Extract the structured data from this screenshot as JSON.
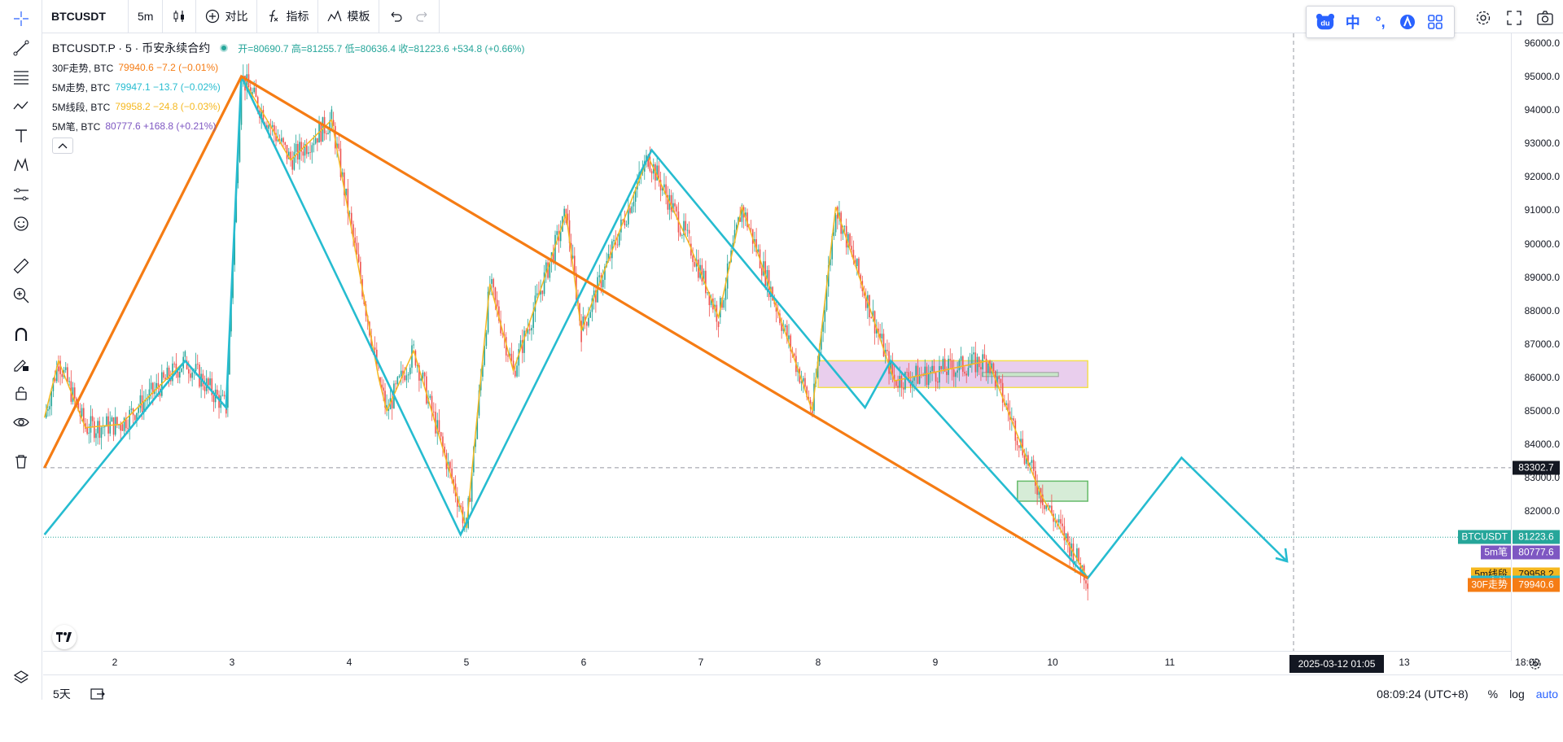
{
  "toolbar": {
    "symbol": "BTCUSDT",
    "interval": "5m",
    "compare_label": "对比",
    "indicators_label": "指标",
    "templates_label": "模板"
  },
  "brand_bar": {
    "du_text": "du",
    "lang_text": "中",
    "degree_text": "°,"
  },
  "legend": {
    "symbol_line": "BTCUSDT.P · 5 · 币安永续合约",
    "ohlc": "开=80690.7 高=81255.7 低=80636.4 收=81223.6 +534.8 (+0.66%)",
    "studies": [
      {
        "name": "30F走势, BTC",
        "value": "79940.6 −7.2 (−0.01%)",
        "color": "#f57c14"
      },
      {
        "name": "5M走势, BTC",
        "value": "79947.1 −13.7 (−0.02%)",
        "color": "#26bcd0"
      },
      {
        "name": "5M线段, BTC",
        "value": "79958.2 −24.8 (−0.03%)",
        "color": "#f5b820"
      },
      {
        "name": "5M笔, BTC",
        "value": "80777.6 +168.8 (+0.21%)",
        "color": "#7e57c2"
      }
    ]
  },
  "bottom": {
    "range_label": "5天",
    "clock": "08:09:24 (UTC+8)",
    "percent_label": "%",
    "log_label": "log",
    "auto_label": "auto"
  },
  "crosshair_date": "2025-03-12   01:05",
  "chart_data": {
    "type": "line",
    "title": "BTCUSDT.P · 5 · 币安永续合约",
    "ylim": [
      78200,
      96800
    ],
    "xlabel": "",
    "ylabel": "",
    "x_tick_labels": [
      "2",
      "3",
      "4",
      "5",
      "6",
      "7",
      "8",
      "9",
      "10",
      "11",
      "13",
      "18:00"
    ],
    "y_tick_labels": [
      "96000.0",
      "95000.0",
      "94000.0",
      "93000.0",
      "92000.0",
      "91000.0",
      "90000.0",
      "89000.0",
      "88000.0",
      "87000.0",
      "86000.0",
      "85000.0",
      "84000.0",
      "83000.0",
      "82000.0"
    ],
    "y_ticks": [
      96000,
      95000,
      94000,
      93000,
      92000,
      91000,
      90000,
      89000,
      88000,
      87000,
      86000,
      85000,
      84000,
      83000,
      82000
    ],
    "x_ticks": [
      2,
      3,
      4,
      5,
      6,
      7,
      8,
      9,
      10,
      11,
      13,
      14.05
    ],
    "xlim": [
      1.4,
      14.4
    ],
    "price_line": 83302.7,
    "last_price": 81223.6,
    "series": [
      {
        "name": "30F走势",
        "color": "#f57c14",
        "x": [
          1.4,
          3.08,
          10.3
        ],
        "y": [
          83300,
          95000,
          80000
        ]
      },
      {
        "name": "5M走势",
        "color": "#26bcd0",
        "x": [
          1.4,
          2.6,
          2.95,
          3.08,
          4.95,
          6.58,
          8.4,
          8.62,
          10.3,
          11.1,
          12.0
        ],
        "y": [
          81300,
          86500,
          85100,
          95000,
          81300,
          92800,
          85100,
          86500,
          80000,
          83600,
          80500
        ]
      },
      {
        "name": "5M线段",
        "color": "#f5b820",
        "x": [
          1.4,
          1.52,
          1.75,
          2.05,
          2.6,
          2.95,
          3.08,
          3.5,
          3.85,
          4.25,
          4.32,
          4.55,
          5.0,
          5.2,
          5.4,
          5.85,
          5.98,
          6.55,
          6.9,
          7.15,
          7.35,
          7.95,
          8.15,
          8.65,
          9.45,
          9.9,
          10.3
        ],
        "y": [
          84800,
          86500,
          84500,
          84600,
          86500,
          85100,
          95000,
          92500,
          93700,
          86000,
          85000,
          86800,
          81500,
          88800,
          86200,
          90900,
          87400,
          92600,
          90000,
          87800,
          91100,
          85000,
          91100,
          85900,
          86500,
          82500,
          80000
        ]
      },
      {
        "name": "5M笔",
        "color": "#7e57c2",
        "x": [],
        "y": []
      }
    ],
    "zones": [
      {
        "x0": 8.0,
        "x1": 10.3,
        "y0": 85700,
        "y1": 86500,
        "fill": "#e1bee7"
      },
      {
        "x0": 9.7,
        "x1": 10.3,
        "y0": 82300,
        "y1": 82900,
        "fill": "#c8e6c9"
      }
    ],
    "scale_tags": [
      {
        "label": "BTCUSDT",
        "value": "81223.6",
        "y": 81223.6,
        "color": "#26a69a"
      },
      {
        "label": "5m笔",
        "value": "80777.6",
        "y": 80777.6,
        "color": "#7e57c2"
      },
      {
        "label": "5m线段",
        "value": "79958.2",
        "y": 79958.2,
        "color": "#f5b820"
      },
      {
        "label": "5m走势",
        "value": "79947.1",
        "y": 79947.1,
        "color": "#26bcd0"
      },
      {
        "label": "30F走势",
        "value": "79940.6",
        "y": 79940.6,
        "color": "#f57c14"
      },
      {
        "label": "",
        "value": "83302.7",
        "y": 83302.7,
        "color": "#131722"
      }
    ]
  }
}
